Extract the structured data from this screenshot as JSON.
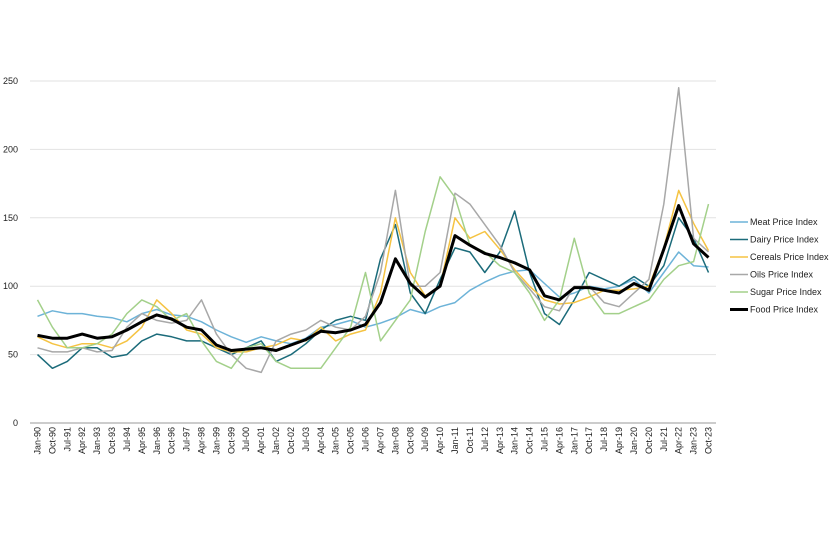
{
  "chart_data": {
    "type": "line",
    "categories": [
      "Jan-90",
      "Oct-90",
      "Jul-91",
      "Apr-92",
      "Jan-93",
      "Oct-93",
      "Jul-94",
      "Apr-95",
      "Jan-96",
      "Oct-96",
      "Jul-97",
      "Apr-98",
      "Jan-99",
      "Oct-99",
      "Jul-00",
      "Apr-01",
      "Jan-02",
      "Oct-02",
      "Jul-03",
      "Apr-04",
      "Jan-05",
      "Oct-05",
      "Jul-06",
      "Apr-07",
      "Jan-08",
      "Oct-08",
      "Jul-09",
      "Apr-10",
      "Jan-11",
      "Oct-11",
      "Jul-12",
      "Apr-13",
      "Jan-14",
      "Oct-14",
      "Jul-15",
      "Apr-16",
      "Jan-17",
      "Oct-17",
      "Jul-18",
      "Apr-19",
      "Jan-20",
      "Oct-20",
      "Jul-21",
      "Apr-22",
      "Jan-23",
      "Oct-23"
    ],
    "series": [
      {
        "name": "Meat Price Index",
        "color": "#6db3d8",
        "width": 1.5,
        "values": [
          78,
          82,
          80,
          80,
          78,
          77,
          74,
          80,
          83,
          79,
          78,
          74,
          68,
          63,
          59,
          63,
          60,
          58,
          62,
          70,
          72,
          75,
          70,
          73,
          77,
          83,
          80,
          85,
          88,
          97,
          103,
          108,
          111,
          112,
          102,
          92,
          95,
          100,
          98,
          100,
          105,
          95,
          110,
          125,
          115,
          114
        ]
      },
      {
        "name": "Dairy Price Index",
        "color": "#1b6b7a",
        "width": 1.5,
        "values": [
          50,
          40,
          45,
          55,
          55,
          48,
          50,
          60,
          65,
          63,
          60,
          60,
          55,
          50,
          55,
          60,
          45,
          50,
          58,
          68,
          75,
          78,
          75,
          120,
          145,
          95,
          80,
          105,
          128,
          125,
          110,
          125,
          155,
          110,
          80,
          72,
          90,
          110,
          105,
          100,
          107,
          100,
          115,
          150,
          135,
          110
        ]
      },
      {
        "name": "Cereals Price Index",
        "color": "#f5c342",
        "width": 1.5,
        "values": [
          63,
          58,
          55,
          58,
          58,
          55,
          60,
          70,
          90,
          80,
          68,
          65,
          55,
          52,
          52,
          55,
          57,
          62,
          60,
          70,
          60,
          65,
          68,
          95,
          150,
          110,
          93,
          100,
          150,
          135,
          140,
          127,
          112,
          100,
          90,
          87,
          88,
          92,
          97,
          97,
          98,
          100,
          128,
          170,
          146,
          126
        ]
      },
      {
        "name": "Oils Price Index",
        "color": "#a8a8a8",
        "width": 1.5,
        "values": [
          55,
          52,
          52,
          55,
          52,
          53,
          70,
          80,
          75,
          73,
          75,
          90,
          65,
          50,
          40,
          37,
          60,
          65,
          68,
          75,
          70,
          68,
          78,
          110,
          170,
          100,
          100,
          110,
          168,
          160,
          145,
          130,
          110,
          98,
          85,
          82,
          100,
          100,
          88,
          85,
          95,
          105,
          160,
          245,
          135,
          125
        ]
      },
      {
        "name": "Sugar Price Index",
        "color": "#a3d08a",
        "width": 1.5,
        "values": [
          90,
          70,
          55,
          55,
          58,
          65,
          80,
          90,
          85,
          75,
          80,
          60,
          45,
          40,
          55,
          58,
          45,
          40,
          40,
          40,
          55,
          70,
          110,
          60,
          75,
          90,
          140,
          180,
          165,
          130,
          125,
          115,
          110,
          95,
          75,
          90,
          135,
          95,
          80,
          80,
          85,
          90,
          105,
          115,
          118,
          160
        ]
      },
      {
        "name": "Food Price Index",
        "color": "#000000",
        "width": 3,
        "values": [
          64,
          62,
          62,
          65,
          62,
          63,
          68,
          74,
          79,
          76,
          70,
          68,
          57,
          53,
          54,
          55,
          53,
          57,
          61,
          67,
          66,
          68,
          72,
          88,
          120,
          102,
          92,
          100,
          137,
          130,
          124,
          121,
          117,
          112,
          93,
          90,
          99,
          99,
          97,
          95,
          102,
          97,
          127,
          159,
          131,
          121
        ]
      }
    ],
    "ylim": [
      0,
      250
    ],
    "yticks": [
      0,
      50,
      100,
      150,
      200,
      250
    ],
    "grid": true
  }
}
